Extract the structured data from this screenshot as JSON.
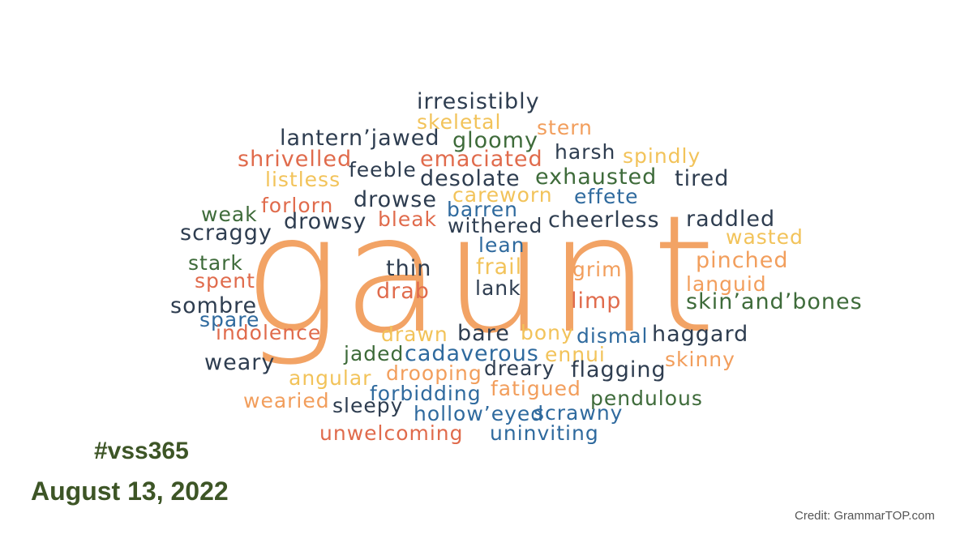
{
  "colors": {
    "navy": "#2e3d50",
    "orange": "#f29e5c",
    "red": "#e06b4c",
    "yellow": "#f2c35a",
    "green": "#3e6b3a",
    "blue": "#2f6a9e",
    "dark_green": "#3d5526",
    "credit_gray": "#555555"
  },
  "hero_word": {
    "text": "gaunt",
    "color": "orange"
  },
  "words": [
    {
      "text": "irresistibly",
      "color": "navy"
    },
    {
      "text": "skeletal",
      "color": "yellow"
    },
    {
      "text": "stern",
      "color": "orange"
    },
    {
      "text": "lantern’jawed",
      "color": "navy"
    },
    {
      "text": "gloomy",
      "color": "green"
    },
    {
      "text": "harsh",
      "color": "navy"
    },
    {
      "text": "spindly",
      "color": "yellow"
    },
    {
      "text": "shrivelled",
      "color": "red"
    },
    {
      "text": "emaciated",
      "color": "red"
    },
    {
      "text": "feeble",
      "color": "navy"
    },
    {
      "text": "listless",
      "color": "yellow"
    },
    {
      "text": "desolate",
      "color": "navy"
    },
    {
      "text": "exhausted",
      "color": "green"
    },
    {
      "text": "tired",
      "color": "navy"
    },
    {
      "text": "careworn",
      "color": "yellow"
    },
    {
      "text": "effete",
      "color": "blue"
    },
    {
      "text": "forlorn",
      "color": "red"
    },
    {
      "text": "drowse",
      "color": "navy"
    },
    {
      "text": "weak",
      "color": "green"
    },
    {
      "text": "barren",
      "color": "blue"
    },
    {
      "text": "drowsy",
      "color": "navy"
    },
    {
      "text": "bleak",
      "color": "red"
    },
    {
      "text": "withered",
      "color": "navy"
    },
    {
      "text": "cheerless",
      "color": "navy"
    },
    {
      "text": "raddled",
      "color": "navy"
    },
    {
      "text": "scraggy",
      "color": "navy"
    },
    {
      "text": "wasted",
      "color": "yellow"
    },
    {
      "text": "lean",
      "color": "blue"
    },
    {
      "text": "pinched",
      "color": "orange"
    },
    {
      "text": "stark",
      "color": "green"
    },
    {
      "text": "thin",
      "color": "navy"
    },
    {
      "text": "frail",
      "color": "yellow"
    },
    {
      "text": "grim",
      "color": "orange"
    },
    {
      "text": "spent",
      "color": "red"
    },
    {
      "text": "languid",
      "color": "orange"
    },
    {
      "text": "drab",
      "color": "red"
    },
    {
      "text": "lank",
      "color": "navy"
    },
    {
      "text": "limp",
      "color": "red"
    },
    {
      "text": "skin’and’bones",
      "color": "green"
    },
    {
      "text": "sombre",
      "color": "navy"
    },
    {
      "text": "spare",
      "color": "blue"
    },
    {
      "text": "indolence",
      "color": "red"
    },
    {
      "text": "drawn",
      "color": "yellow"
    },
    {
      "text": "bare",
      "color": "navy"
    },
    {
      "text": "bony",
      "color": "yellow"
    },
    {
      "text": "dismal",
      "color": "blue"
    },
    {
      "text": "haggard",
      "color": "navy"
    },
    {
      "text": "jaded",
      "color": "green"
    },
    {
      "text": "cadaverous",
      "color": "blue"
    },
    {
      "text": "ennui",
      "color": "yellow"
    },
    {
      "text": "weary",
      "color": "navy"
    },
    {
      "text": "skinny",
      "color": "orange"
    },
    {
      "text": "angular",
      "color": "yellow"
    },
    {
      "text": "drooping",
      "color": "orange"
    },
    {
      "text": "dreary",
      "color": "navy"
    },
    {
      "text": "flagging",
      "color": "navy"
    },
    {
      "text": "fatigued",
      "color": "orange"
    },
    {
      "text": "forbidding",
      "color": "blue"
    },
    {
      "text": "pendulous",
      "color": "green"
    },
    {
      "text": "wearied",
      "color": "orange"
    },
    {
      "text": "sleepy",
      "color": "navy"
    },
    {
      "text": "hollow’eyed",
      "color": "blue"
    },
    {
      "text": "scrawny",
      "color": "blue"
    },
    {
      "text": "unwelcoming",
      "color": "red"
    },
    {
      "text": "uninviting",
      "color": "blue"
    }
  ],
  "hashtag": "#vss365",
  "date": "August 13, 2022",
  "credit": "Credit: GrammarTOP.com"
}
